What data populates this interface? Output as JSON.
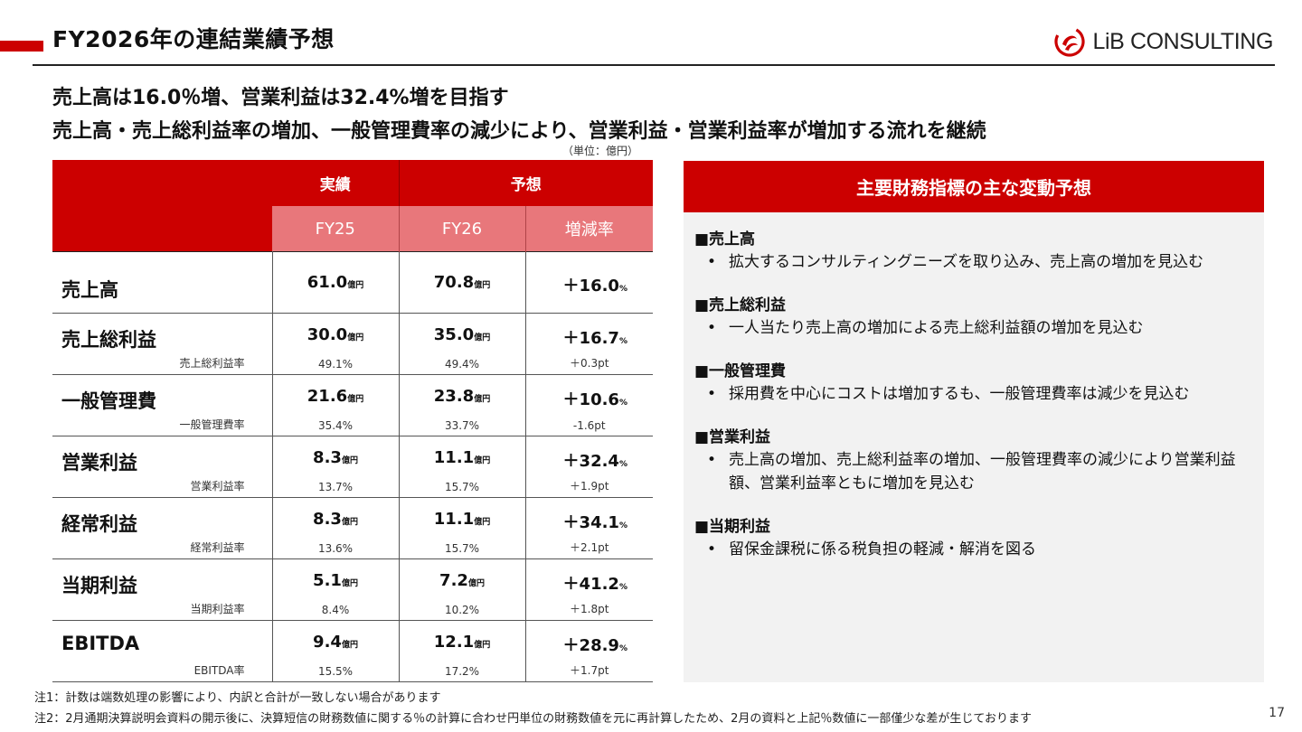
{
  "header": {
    "title": "FY2026年の連結業績予想",
    "logo_text": "LiB CONSULTING",
    "brand_color": "#cc0000"
  },
  "headlines": [
    "売上高は16.0％増、営業利益は32.4%増を目指す",
    "売上高・売上総利益率の増加、一般管理費率の減少により、営業利益・営業利益率が増加する流れを継続"
  ],
  "unit_note": "（単位：億円）",
  "table": {
    "group_actual": "実績",
    "group_forecast": "予想",
    "col_fy25": "FY25",
    "col_fy26": "FY26",
    "col_change": "増減率",
    "unit_small": "億円",
    "pct_small": "%",
    "rows": [
      {
        "item": "売上高",
        "fy25": "61.0",
        "fy26": "70.8",
        "change": "＋16.0"
      },
      {
        "item": "売上総利益",
        "fy25": "30.0",
        "fy26": "35.0",
        "change": "＋16.7",
        "sub_label": "売上総利益率",
        "sub_fy25": "49.1%",
        "sub_fy26": "49.4%",
        "sub_change": "＋0.3pt"
      },
      {
        "item": "一般管理費",
        "fy25": "21.6",
        "fy26": "23.8",
        "change": "＋10.6",
        "sub_label": "一般管理費率",
        "sub_fy25": "35.4%",
        "sub_fy26": "33.7%",
        "sub_change": "-1.6pt"
      },
      {
        "item": "営業利益",
        "fy25": "8.3",
        "fy26": "11.1",
        "change": "＋32.4",
        "sub_label": "営業利益率",
        "sub_fy25": "13.7%",
        "sub_fy26": "15.7%",
        "sub_change": "＋1.9pt"
      },
      {
        "item": "経常利益",
        "fy25": "8.3",
        "fy26": "11.1",
        "change": "＋34.1",
        "sub_label": "経常利益率",
        "sub_fy25": "13.6%",
        "sub_fy26": "15.7%",
        "sub_change": "＋2.1pt"
      },
      {
        "item": "当期利益",
        "fy25": "5.1",
        "fy26": "7.2",
        "change": "＋41.2",
        "sub_label": "当期利益率",
        "sub_fy25": "8.4%",
        "sub_fy26": "10.2%",
        "sub_change": "＋1.8pt"
      },
      {
        "item": "EBITDA",
        "fy25": "9.4",
        "fy26": "12.1",
        "change": "＋28.9",
        "sub_label": "EBITDA率",
        "sub_fy25": "15.5%",
        "sub_fy26": "17.2%",
        "sub_change": "＋1.7pt"
      }
    ]
  },
  "panel": {
    "title": "主要財務指標の主な変動予想",
    "sections": [
      {
        "title": "■売上高",
        "bullet_mark": "•",
        "bullet": "拡大するコンサルティングニーズを取り込み、売上高の増加を見込む"
      },
      {
        "title": "■売上総利益",
        "bullet_mark": "•",
        "bullet": "一人当たり売上高の増加による売上総利益額の増加を見込む"
      },
      {
        "title": "■一般管理費",
        "bullet_mark": "•",
        "bullet": "採用費を中心にコストは増加するも、一般管理費率は減少を見込む"
      },
      {
        "title": "■営業利益",
        "bullet_mark": "•",
        "bullet": "売上高の増加、売上総利益率の増加、一般管理費率の減少により営業利益額、営業利益率ともに増加を見込む"
      },
      {
        "title": "■当期利益",
        "bullet_mark": "•",
        "bullet": "留保金課税に係る税負担の軽減・解消を図る"
      }
    ]
  },
  "notes": [
    "注1：計数は端数処理の影響により、内訳と合計が一致しない場合があります",
    "注2：2月通期決算説明会資料の開示後に、決算短信の財務数値に関する％の計算に合わせ円単位の財務数値を元に再計算したため、2月の資料と上記％数値に一部僅少な差が生じております"
  ],
  "page_number": "17"
}
